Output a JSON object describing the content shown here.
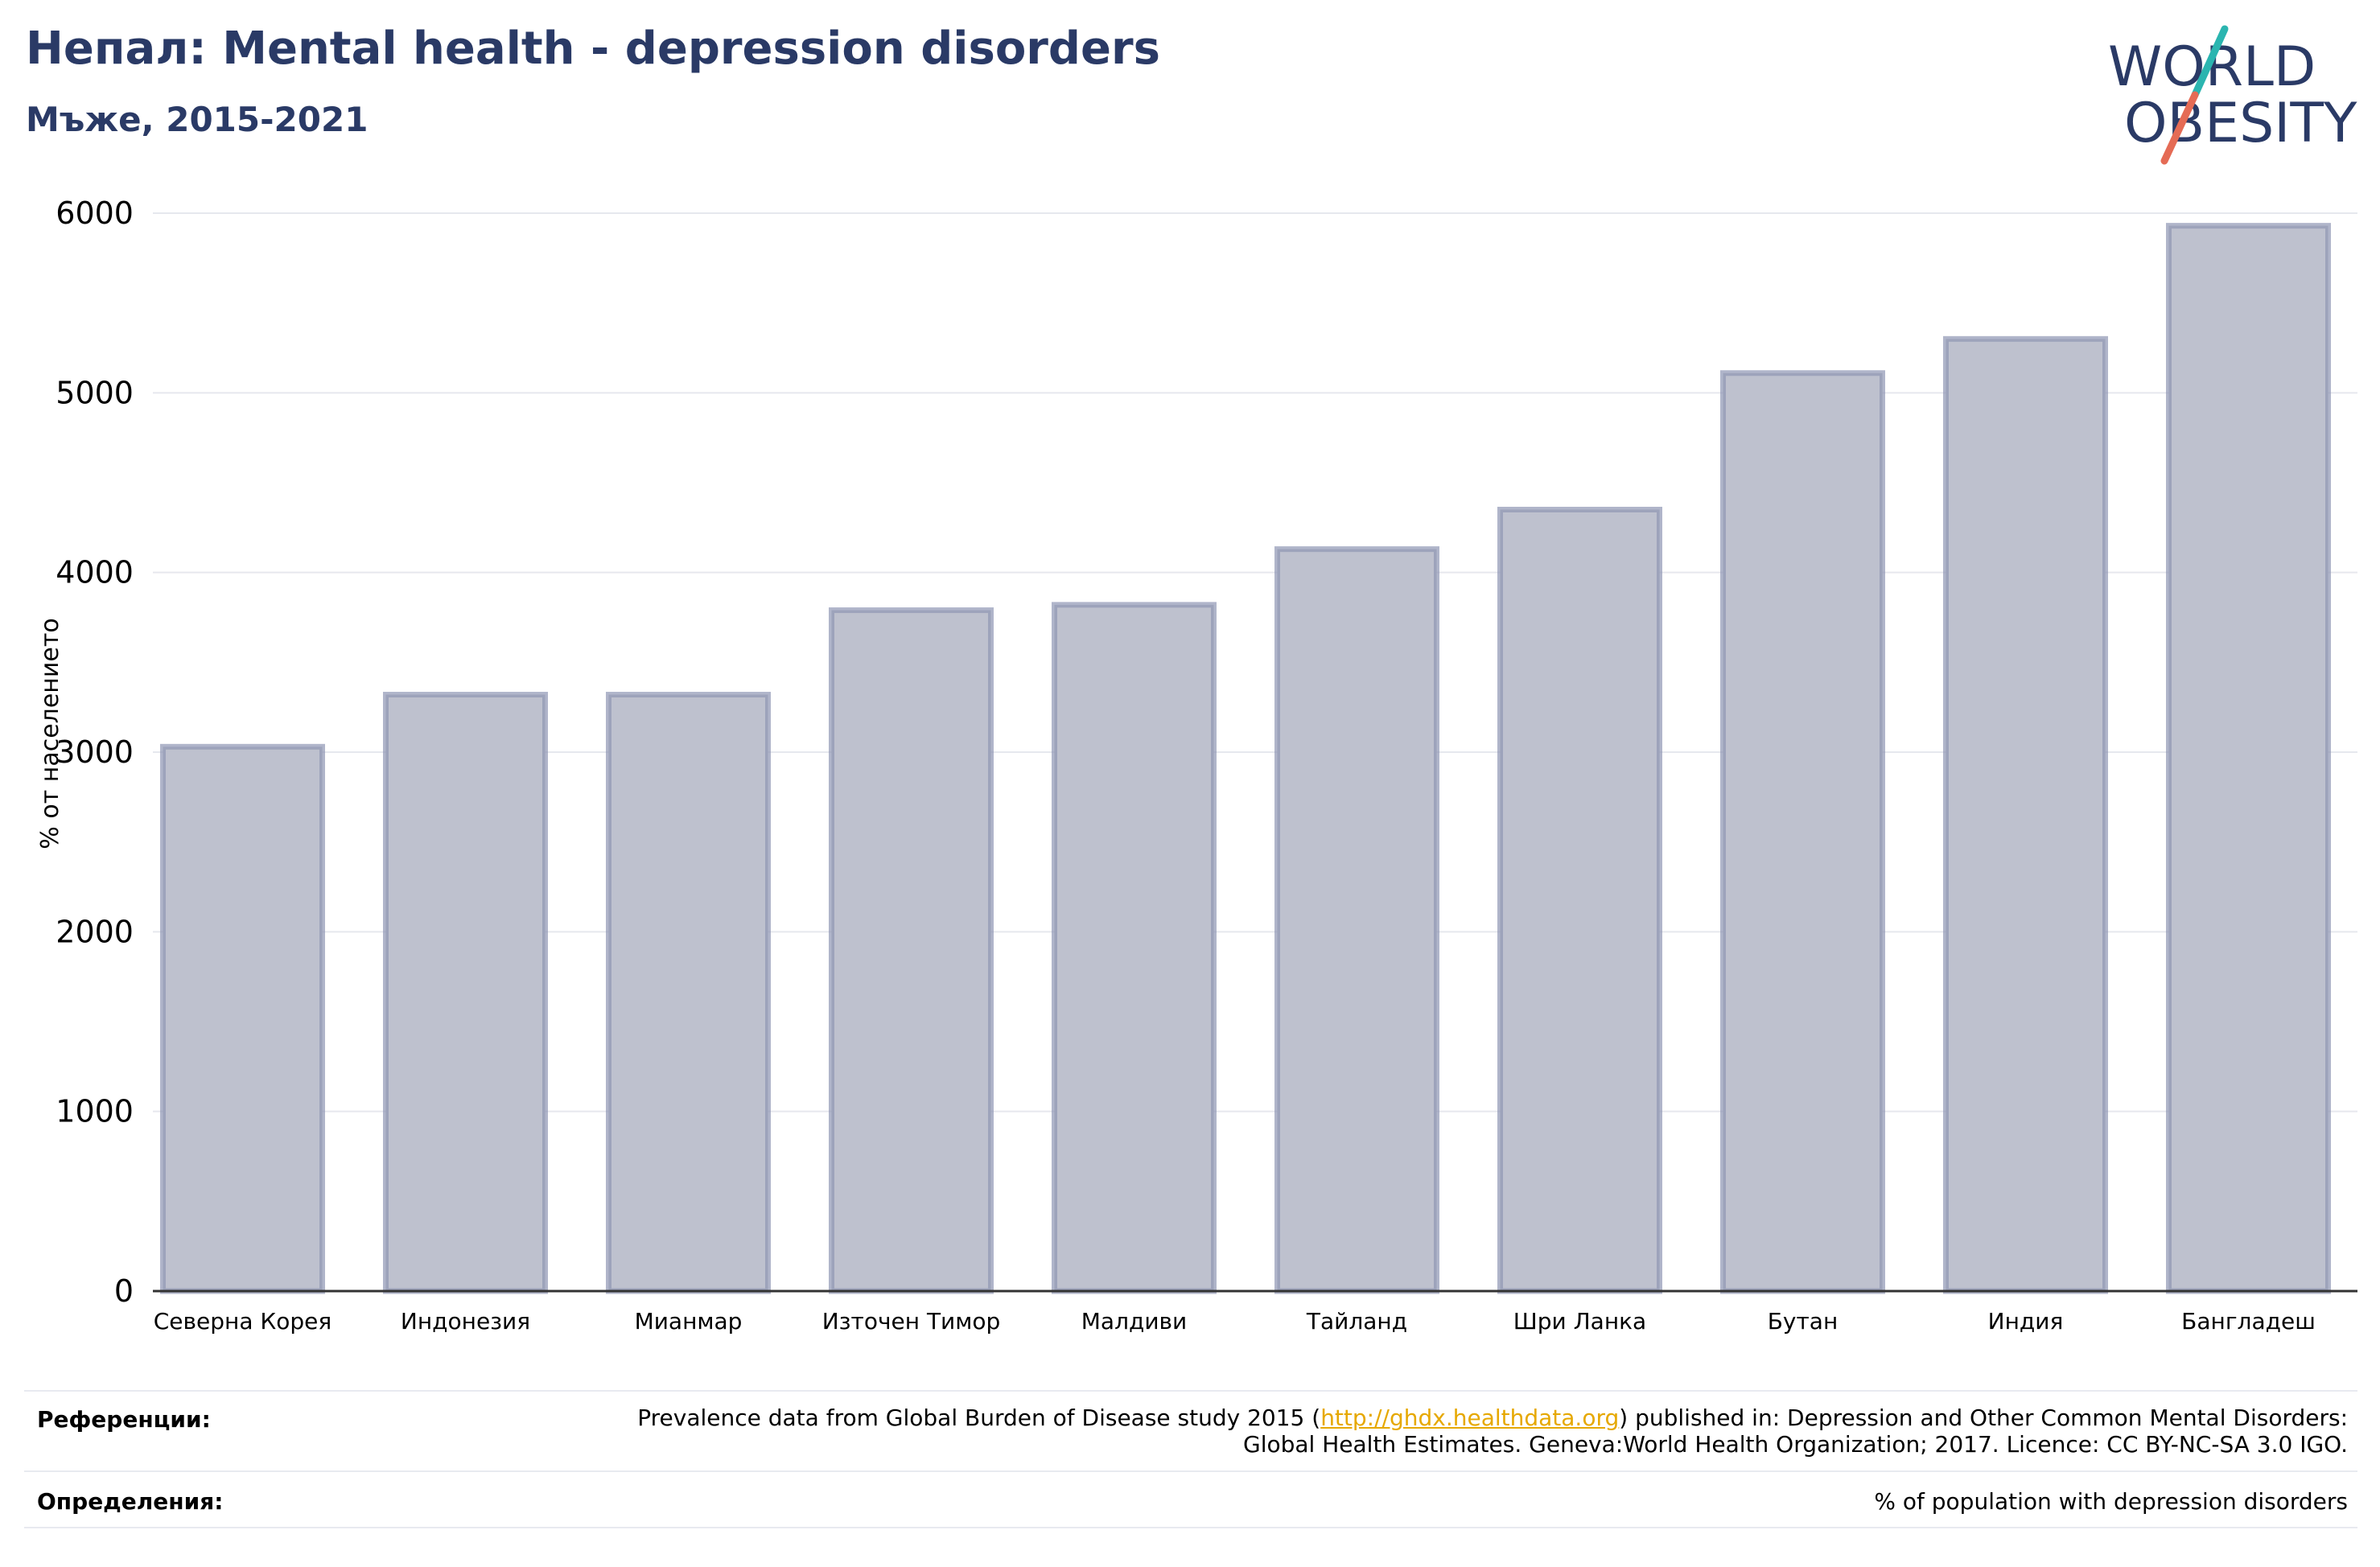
{
  "header": {
    "title": "Непал: Mental health - depression disorders",
    "subtitle": "Мъже, 2015-2021"
  },
  "logo": {
    "line1": "WORLD",
    "line2": "OBESITY",
    "colors": {
      "text": "#2a3a66",
      "slash_top": "#2bb5b0",
      "slash_bottom": "#e56b55"
    }
  },
  "chart_data": {
    "type": "bar",
    "title": "",
    "xlabel": "",
    "ylabel": "% от населението",
    "ylim": [
      0,
      6000
    ],
    "yticks": [
      0,
      1000,
      2000,
      3000,
      4000,
      5000,
      6000
    ],
    "grid": true,
    "categories": [
      "Северна Корея",
      "Индонезия",
      "Мианмар",
      "Източен Тимор",
      "Малдиви",
      "Тайланд",
      "Шри Ланка",
      "Бутан",
      "Индия",
      "Бангладеш"
    ],
    "values": [
      3030,
      3320,
      3320,
      3790,
      3820,
      4130,
      4350,
      5110,
      5300,
      5930
    ],
    "colors": {
      "bar_fill": "#bec1ce",
      "bar_stroke": "#8f96b3",
      "grid": "#e6e8ee",
      "axis": "#333333"
    }
  },
  "footer": {
    "references_label": "Референции:",
    "references_pre": "Prevalence data from Global Burden of Disease study 2015 (",
    "references_link": "http://ghdx.healthdata.org",
    "references_post": ") published in: Depression and Other Common Mental Disorders: Global Health Estimates. Geneva:World Health Organization; 2017. Licence: CC BY-NC-SA 3.0 IGO.",
    "definitions_label": "Определения:",
    "definitions_text": "% of population with depression disorders"
  }
}
